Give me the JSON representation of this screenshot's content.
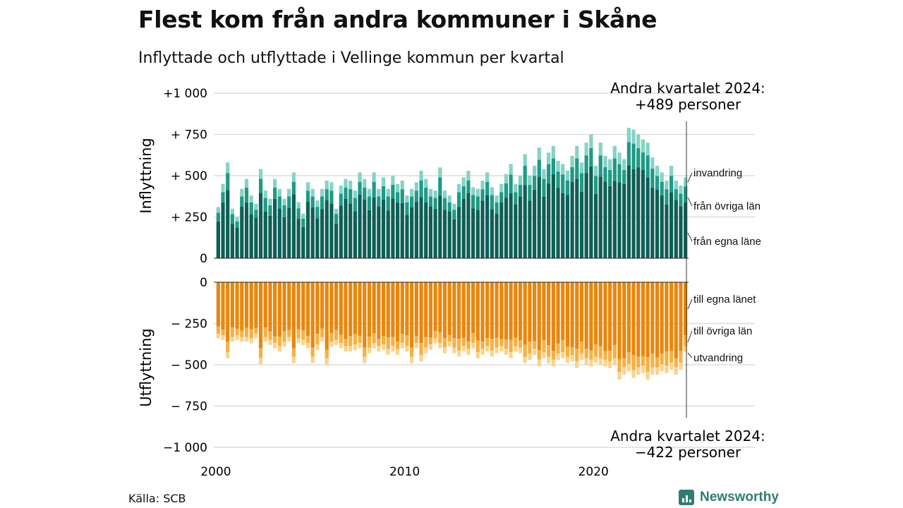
{
  "title": "Flest kom från andra kommuner i Skåne",
  "subtitle": "Inflyttade och utflyttade i Vellinge kommun per kvartal",
  "source": "Källa: SCB",
  "brand": "Newsworthy",
  "chart_data": {
    "type": "bar",
    "stacked": true,
    "x_start": "2000 Q1",
    "x_ticks": [
      "2000",
      "2010",
      "2020"
    ],
    "panels": [
      {
        "name": "inflyttning",
        "ylabel": "Inflyttning",
        "ylim": [
          0,
          1000
        ],
        "y_ticks": [
          {
            "v": 0,
            "label": "0"
          },
          {
            "v": 250,
            "label": "+ 250"
          },
          {
            "v": 500,
            "label": "+ 500"
          },
          {
            "v": 750,
            "label": "+ 750"
          },
          {
            "v": 1000,
            "label": "+1 000"
          }
        ],
        "series": [
          {
            "name": "från egna länet",
            "color": "#0e5f55"
          },
          {
            "name": "från övriga län",
            "color": "#1f9a86"
          },
          {
            "name": "invandring",
            "color": "#86d3c7"
          }
        ],
        "series_labels": [
          "invandring",
          "från övriga län",
          "från egna läne"
        ],
        "annotation": "Andra kvartalet 2024:\n+489 personer",
        "totals": [
          310,
          450,
          580,
          300,
          250,
          420,
          480,
          380,
          330,
          540,
          410,
          360,
          480,
          420,
          360,
          420,
          520,
          340,
          270,
          460,
          420,
          350,
          420,
          470,
          460,
          300,
          440,
          480,
          470,
          410,
          520,
          480,
          420,
          520,
          420,
          490,
          420,
          500,
          450,
          470,
          380,
          420,
          460,
          530,
          480,
          420,
          410,
          550,
          410,
          380,
          330,
          450,
          490,
          530,
          430,
          420,
          470,
          520,
          430,
          380,
          450,
          510,
          570,
          450,
          500,
          630,
          500,
          560,
          670,
          540,
          640,
          680,
          590,
          570,
          530,
          620,
          680,
          580,
          700,
          750,
          560,
          700,
          620,
          600,
          680,
          640,
          600,
          790,
          780,
          750,
          720,
          700,
          610,
          560,
          520,
          470,
          560,
          470,
          440,
          489
        ]
      },
      {
        "name": "utflyttning",
        "ylabel": "Utflyttning",
        "ylim": [
          -1000,
          0
        ],
        "y_ticks": [
          {
            "v": 0,
            "label": "0"
          },
          {
            "v": -250,
            "label": "− 250"
          },
          {
            "v": -500,
            "label": "− 500"
          },
          {
            "v": -750,
            "label": "− 750"
          },
          {
            "v": -1000,
            "label": "−1 000"
          }
        ],
        "series": [
          {
            "name": "till egna länet",
            "color": "#e8870e"
          },
          {
            "name": "till övriga län",
            "color": "#f4b145"
          },
          {
            "name": "utvandring",
            "color": "#fad48f"
          }
        ],
        "series_labels": [
          "till egna länet",
          "till övriga län",
          "utvandring"
        ],
        "annotation": "Andra kvartalet 2024:\n−422 personer",
        "totals": [
          340,
          350,
          460,
          360,
          350,
          360,
          360,
          370,
          340,
          500,
          360,
          380,
          400,
          420,
          390,
          360,
          490,
          370,
          380,
          400,
          490,
          410,
          360,
          500,
          390,
          380,
          400,
          420,
          420,
          410,
          400,
          490,
          430,
          400,
          420,
          410,
          440,
          420,
          440,
          400,
          420,
          490,
          400,
          480,
          430,
          410,
          370,
          400,
          430,
          390,
          430,
          450,
          420,
          440,
          400,
          460,
          440,
          420,
          450,
          430,
          420,
          440,
          460,
          420,
          430,
          490,
          470,
          440,
          510,
          460,
          490,
          510,
          470,
          460,
          490,
          480,
          520,
          470,
          500,
          510,
          490,
          500,
          510,
          520,
          500,
          590,
          560,
          540,
          580,
          560,
          550,
          590,
          560,
          560,
          540,
          550,
          530,
          560,
          530,
          422
        ]
      }
    ]
  }
}
